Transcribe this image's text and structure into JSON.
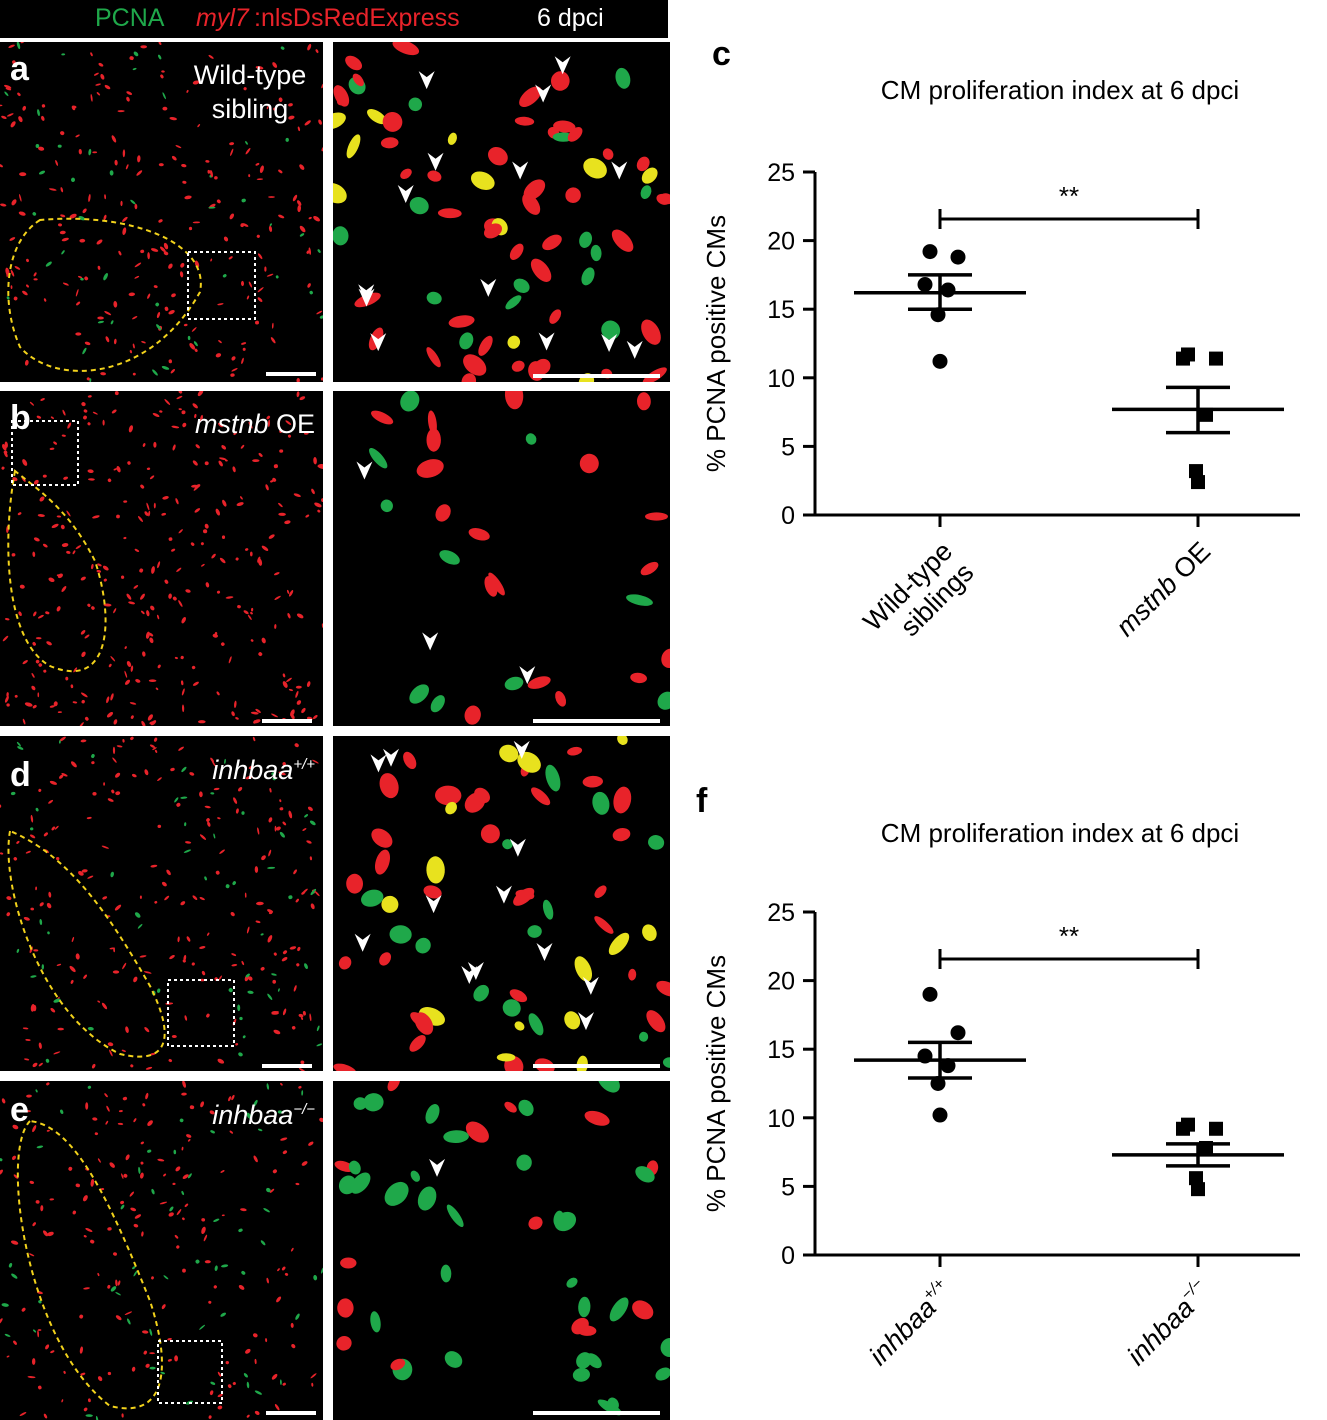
{
  "header": {
    "pcna": "PCNA",
    "myl7": "myl7",
    "reporter": ":nlsDsRedExpress",
    "timepoint": "6 dpci"
  },
  "colors": {
    "green": "#1fa84a",
    "red": "#e8232a",
    "yellow_outline": "#f2d21b",
    "white": "#ffffff",
    "black": "#000000"
  },
  "panels": [
    {
      "letter": "a",
      "condition_line1": "Wild-type",
      "condition_line2": "sibling"
    },
    {
      "letter": "b",
      "condition_italic": "mstnb",
      "condition_rest": " OE"
    },
    {
      "letter": "d",
      "condition_italic": "inhbaa",
      "condition_sup": "+/+"
    },
    {
      "letter": "e",
      "condition_italic": "inhbaa",
      "condition_sup": "−/−"
    }
  ],
  "chart_data": [
    {
      "panel_letter": "c",
      "type": "scatter",
      "title": "CM proliferation index at 6 dpci",
      "ylabel": "% PCNA positive CMs",
      "ylim": [
        0,
        25
      ],
      "yticks": [
        0,
        5,
        10,
        15,
        20,
        25
      ],
      "categories": [
        {
          "line1": "Wild-type",
          "line2": "siblings"
        },
        {
          "italic": "mstnb",
          "rest": " OE"
        }
      ],
      "series": [
        {
          "marker": "circle",
          "values": [
            19.2,
            18.8,
            16.8,
            16.4,
            14.6,
            11.2
          ],
          "mean": 16.2,
          "sem_low": 15.0,
          "sem_high": 17.5
        },
        {
          "marker": "square",
          "values": [
            11.7,
            11.4,
            11.4,
            7.3,
            3.2,
            2.4
          ],
          "mean": 7.7,
          "sem_low": 6.0,
          "sem_high": 9.3
        }
      ],
      "significance": "**"
    },
    {
      "panel_letter": "f",
      "type": "scatter",
      "title": "CM proliferation index at 6 dpci",
      "ylabel": "% PCNA positive CMs",
      "ylim": [
        0,
        25
      ],
      "yticks": [
        0,
        5,
        10,
        15,
        20,
        25
      ],
      "categories": [
        {
          "italic": "inhbaa",
          "sup": "+/+"
        },
        {
          "italic": "inhbaa",
          "sup": "−/−"
        }
      ],
      "series": [
        {
          "marker": "circle",
          "values": [
            19.0,
            16.2,
            14.5,
            13.8,
            12.5,
            10.2
          ],
          "mean": 14.2,
          "sem_low": 12.9,
          "sem_high": 15.5
        },
        {
          "marker": "square",
          "values": [
            9.5,
            9.2,
            9.2,
            7.8,
            5.6,
            4.8
          ],
          "mean": 7.3,
          "sem_low": 6.5,
          "sem_high": 8.1
        }
      ],
      "significance": "**"
    }
  ]
}
